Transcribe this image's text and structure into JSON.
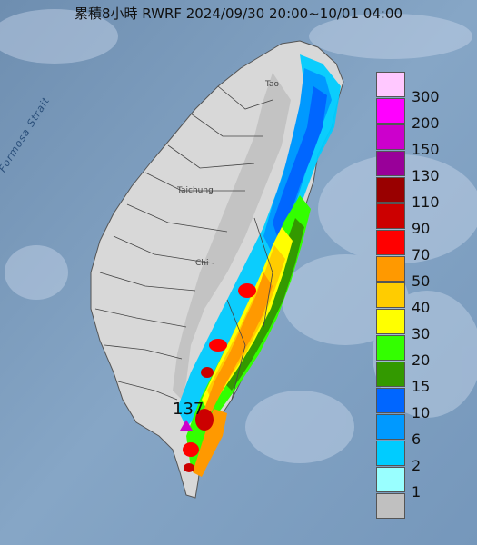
{
  "title": "累積8小時 RWRF 2024/09/30 20:00~10/01 04:00",
  "map_labels": {
    "strait": "Formosa Strait",
    "max_value": "137",
    "taichung": "Taichung",
    "taipei": "Tao",
    "chiayi": "Chi"
  },
  "legend": [
    {
      "label": "300",
      "color": "#ffc8ff"
    },
    {
      "label": "200",
      "color": "#ff00ff"
    },
    {
      "label": "150",
      "color": "#cc00cc"
    },
    {
      "label": "130",
      "color": "#990099"
    },
    {
      "label": "110",
      "color": "#990000"
    },
    {
      "label": "90",
      "color": "#cc0000"
    },
    {
      "label": "70",
      "color": "#ff0000"
    },
    {
      "label": "50",
      "color": "#ff9900"
    },
    {
      "label": "40",
      "color": "#ffcc00"
    },
    {
      "label": "30",
      "color": "#ffff00"
    },
    {
      "label": "20",
      "color": "#33ff00"
    },
    {
      "label": "15",
      "color": "#339900"
    },
    {
      "label": "10",
      "color": "#0066ff"
    },
    {
      "label": "6",
      "color": "#0099ff"
    },
    {
      "label": "2",
      "color": "#00ccff"
    },
    {
      "label": "1",
      "color": "#99ffff"
    },
    {
      "label": "",
      "color": "#c0c0c0"
    }
  ]
}
